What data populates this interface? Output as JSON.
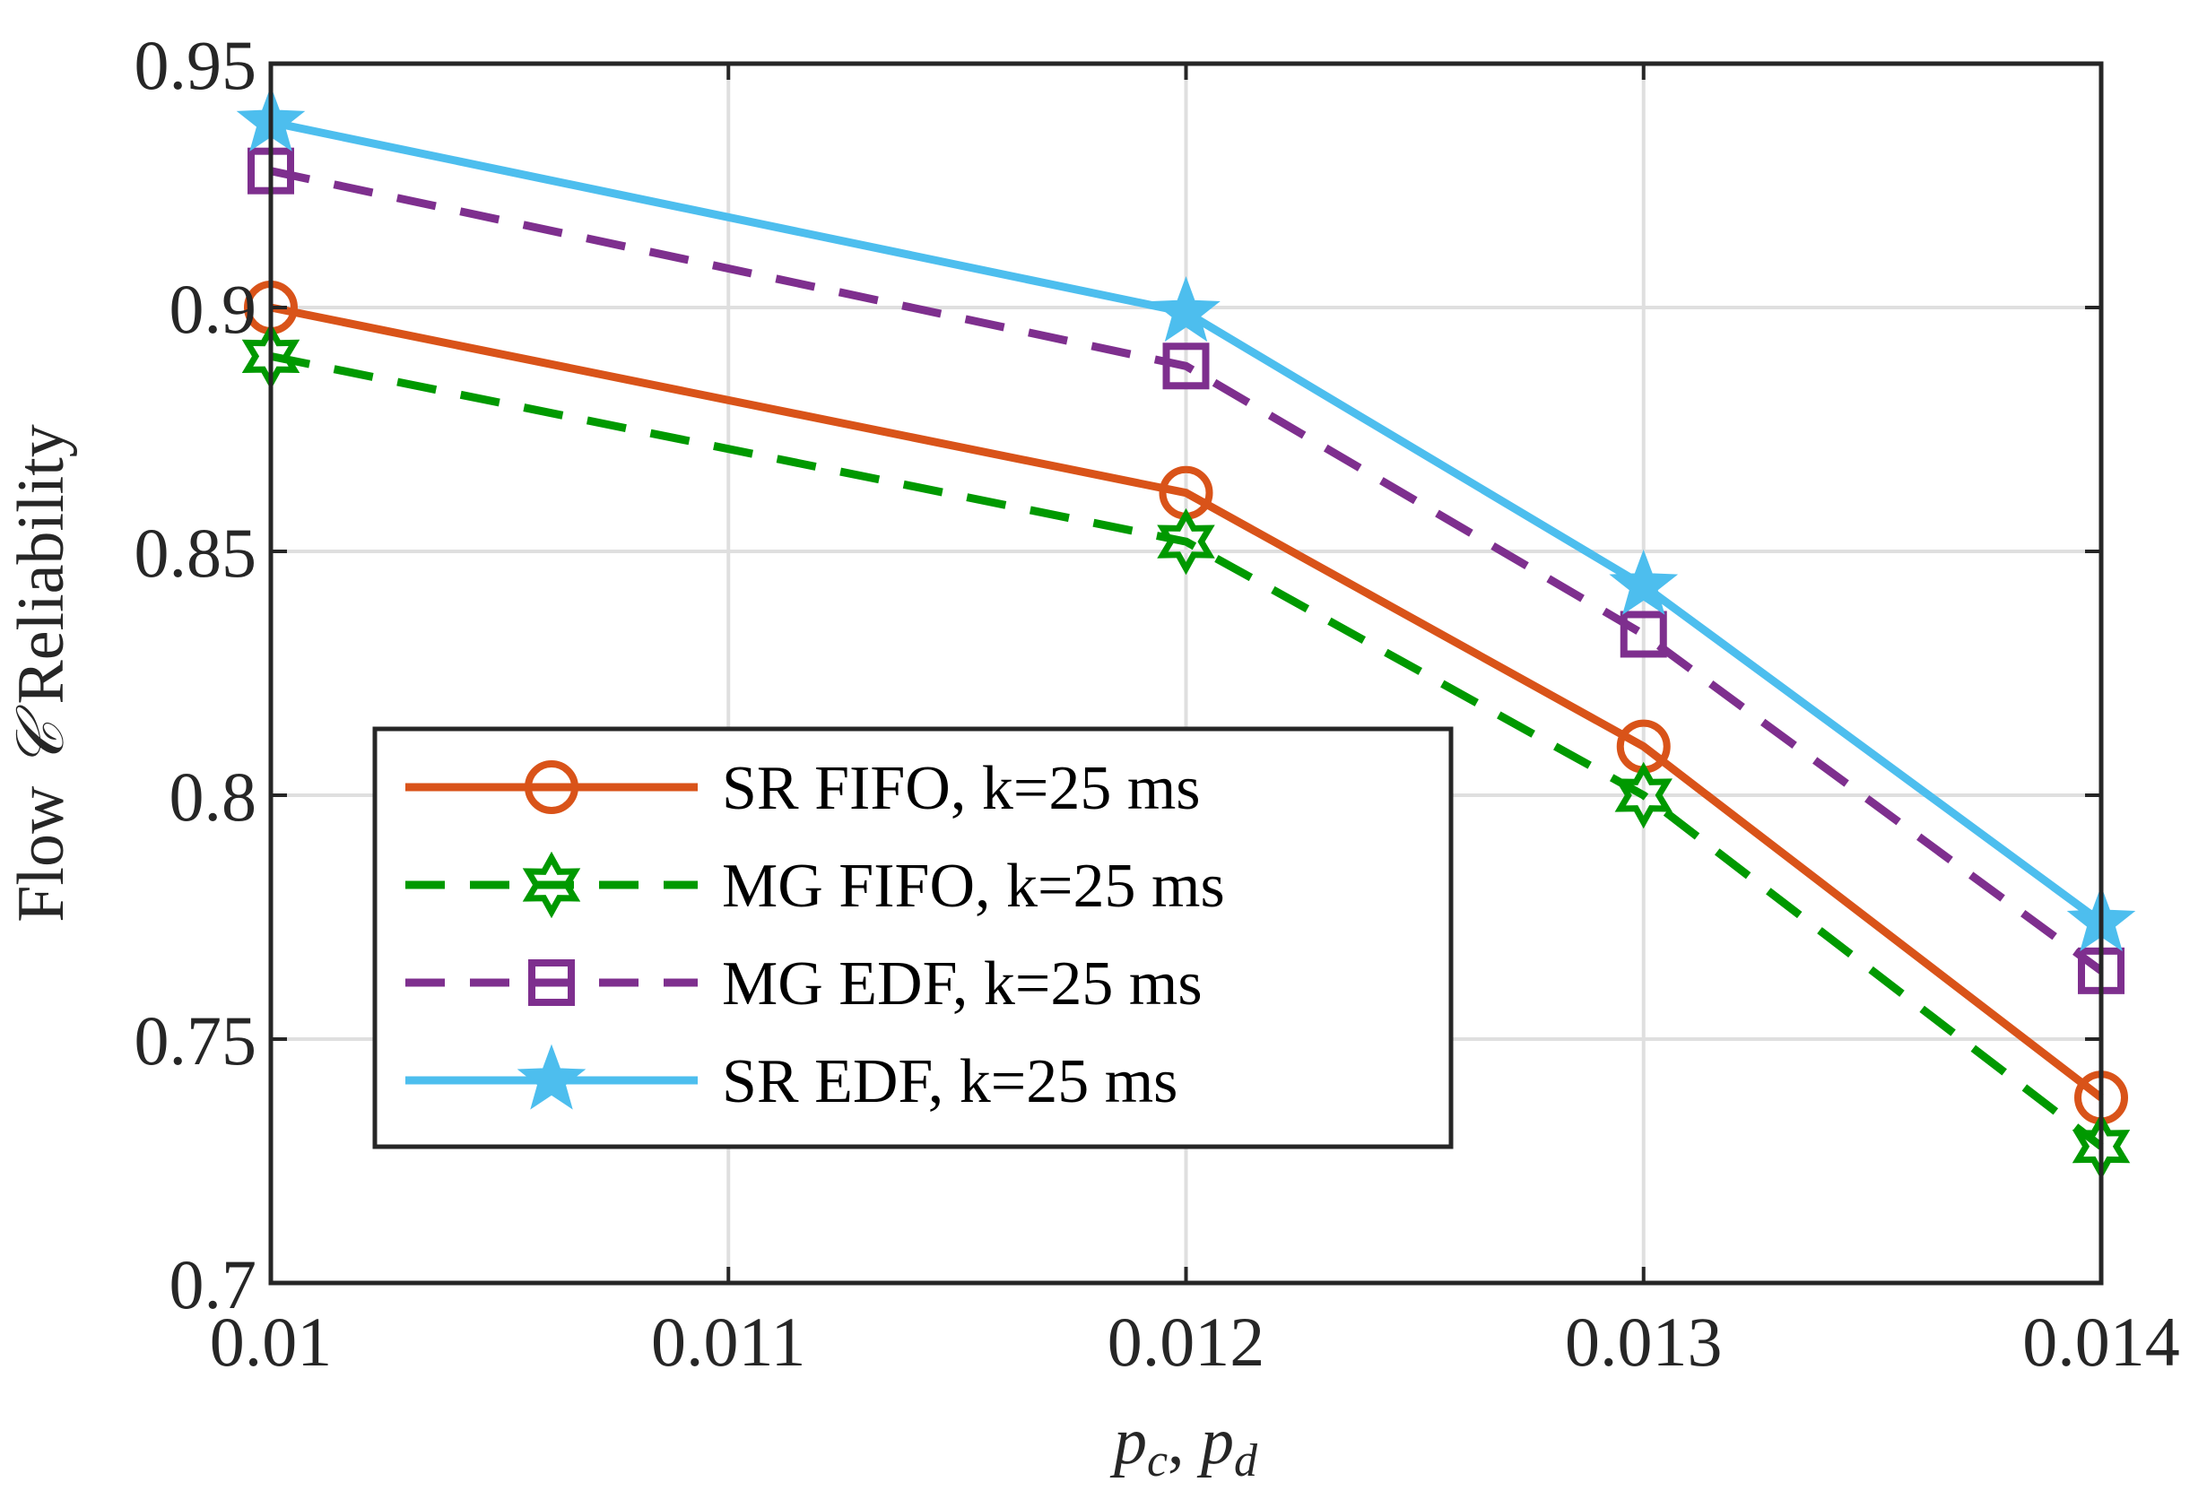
{
  "chart_data": {
    "type": "line",
    "title": "",
    "xlabel": "p_c, p_d",
    "xlabel_parts": [
      "p",
      "c",
      ", ",
      "p",
      "d"
    ],
    "ylabel": "Flow 𝒞 Reliability",
    "ylabel_parts": [
      "Flow ",
      "𝒞",
      " Reliability"
    ],
    "xlim": [
      0.01,
      0.014
    ],
    "ylim": [
      0.7,
      0.95
    ],
    "x": [
      0.01,
      0.012,
      0.013,
      0.014
    ],
    "xticks": [
      0.01,
      0.011,
      0.012,
      0.013,
      0.014
    ],
    "xtick_labels": [
      "0.01",
      "0.011",
      "0.012",
      "0.013",
      "0.014"
    ],
    "yticks": [
      0.7,
      0.75,
      0.8,
      0.85,
      0.9,
      0.95
    ],
    "ytick_labels": [
      "0.7",
      "0.75",
      "0.8",
      "0.85",
      "0.9",
      "0.95"
    ],
    "grid": true,
    "legend_position": "lower-left",
    "series": [
      {
        "name": "SR FIFO, k=25 ms",
        "values": [
          0.9,
          0.862,
          0.81,
          0.738
        ],
        "color": "#D95319",
        "dash": "solid",
        "marker": "circle"
      },
      {
        "name": "MG FIFO, k=25 ms",
        "values": [
          0.89,
          0.852,
          0.8,
          0.728
        ],
        "color": "#009900",
        "dash": "dashed",
        "marker": "hexagram"
      },
      {
        "name": "MG EDF, k=25 ms",
        "values": [
          0.928,
          0.888,
          0.833,
          0.764
        ],
        "color": "#7E2F8E",
        "dash": "dashed",
        "marker": "square"
      },
      {
        "name": "SR EDF, k=25 ms",
        "values": [
          0.938,
          0.899,
          0.843,
          0.774
        ],
        "color": "#4DBEEE",
        "dash": "solid",
        "marker": "star"
      }
    ]
  }
}
